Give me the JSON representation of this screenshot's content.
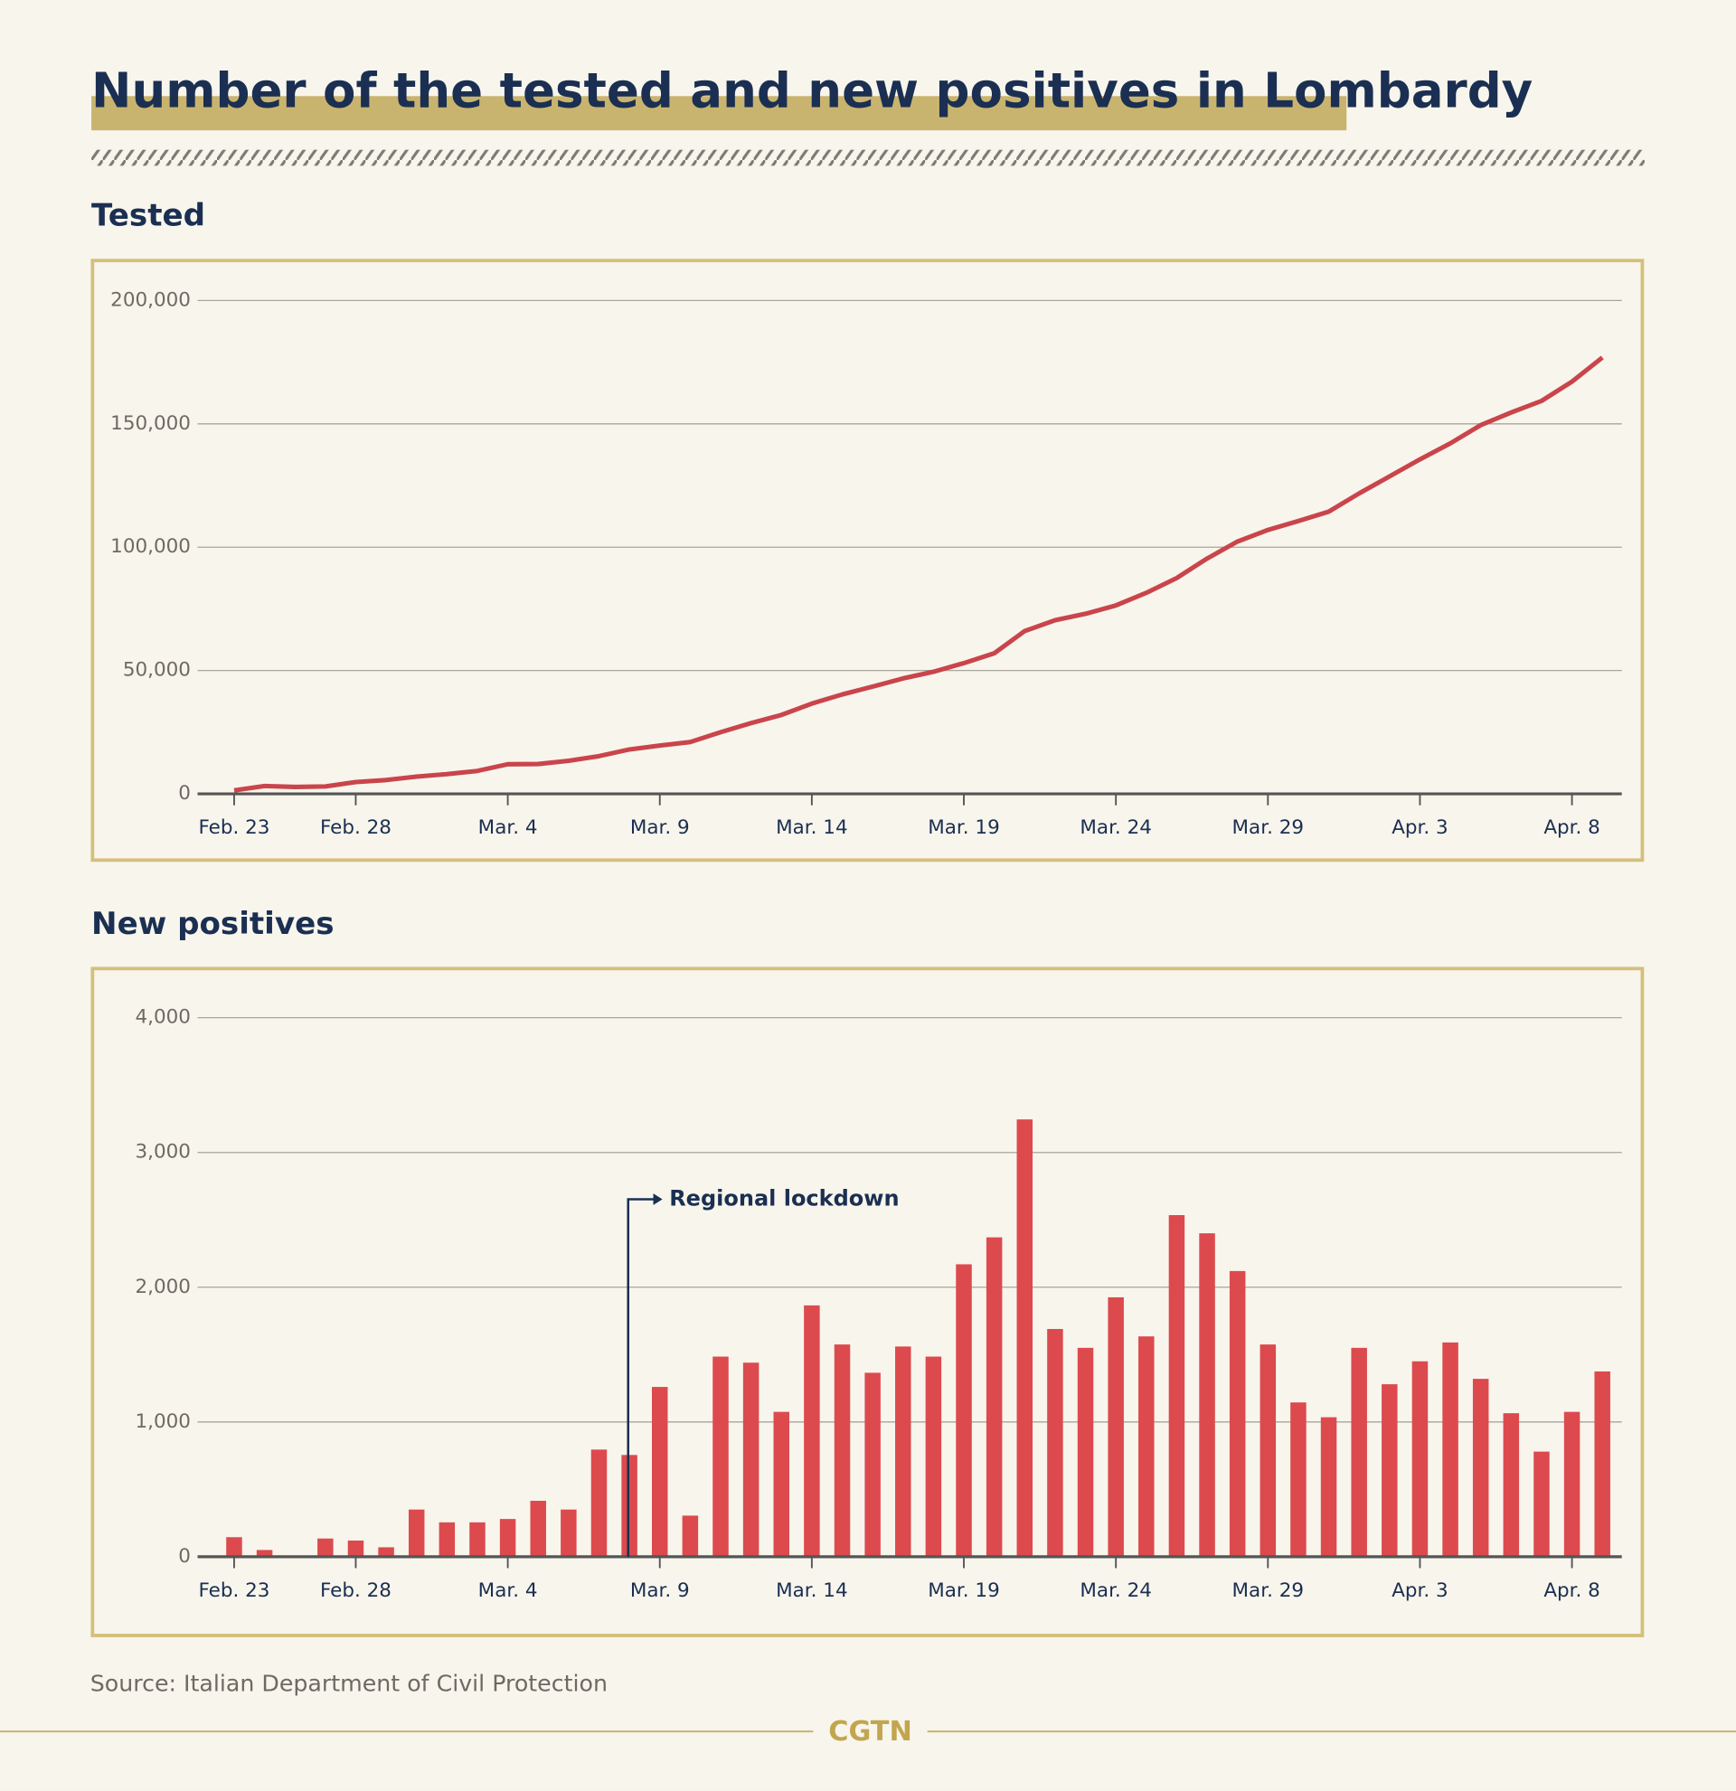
{
  "title": "Number of the tested and new positives in Lombardy",
  "source": "Source: Italian Department of Civil Protection",
  "brand": "CGTN",
  "chart_data": [
    {
      "type": "line",
      "title": "Tested",
      "color": "#c9454b",
      "grid": true,
      "categories": [
        "Feb. 23",
        null,
        null,
        null,
        "Feb. 28",
        null,
        null,
        null,
        null,
        "Mar. 4",
        null,
        null,
        null,
        null,
        "Mar. 9",
        null,
        null,
        null,
        null,
        "Mar. 14",
        null,
        null,
        null,
        null,
        "Mar. 19",
        null,
        null,
        null,
        null,
        "Mar. 24",
        null,
        null,
        null,
        null,
        "Mar. 29",
        null,
        null,
        null,
        null,
        "Apr. 3",
        null,
        null,
        null,
        null,
        "Apr. 8",
        null
      ],
      "values": [
        1400,
        3200,
        2800,
        3000,
        4800,
        5600,
        7000,
        8000,
        9300,
        12000,
        12100,
        13400,
        15300,
        18000,
        19600,
        21000,
        25000,
        28700,
        32000,
        36600,
        40300,
        43500,
        46800,
        49500,
        53000,
        57000,
        66000,
        70400,
        73000,
        76400,
        81500,
        87500,
        95400,
        102300,
        107000,
        110600,
        114400,
        121800,
        128700,
        135600,
        142100,
        149500,
        154600,
        159300,
        167100,
        176900
      ],
      "ylim": [
        0,
        200000
      ],
      "yticks": [
        0,
        {
          "value": 50000,
          "label": "50,000"
        },
        {
          "value": 100000,
          "label": "100,000"
        },
        {
          "value": 150000,
          "label": "150,000"
        },
        {
          "value": 200000,
          "label": "200,000"
        }
      ]
    },
    {
      "type": "bar",
      "title": "New positives",
      "color": "#dc4a4e",
      "grid": true,
      "categories": [
        "Feb. 23",
        null,
        null,
        null,
        "Feb. 28",
        null,
        null,
        null,
        null,
        "Mar. 4",
        null,
        null,
        null,
        null,
        "Mar. 9",
        null,
        null,
        null,
        null,
        "Mar. 14",
        null,
        null,
        null,
        null,
        "Mar. 19",
        null,
        null,
        null,
        null,
        "Mar. 24",
        null,
        null,
        null,
        null,
        "Mar. 29",
        null,
        null,
        null,
        null,
        "Apr. 3",
        null,
        null,
        null,
        null,
        "Apr. 8",
        null
      ],
      "values": [
        145,
        50,
        0,
        135,
        120,
        70,
        350,
        255,
        255,
        280,
        415,
        350,
        795,
        755,
        1260,
        305,
        1485,
        1440,
        1075,
        1865,
        1575,
        1365,
        1560,
        1485,
        2170,
        2370,
        3245,
        1690,
        1550,
        1925,
        1635,
        2535,
        2400,
        2120,
        1575,
        1145,
        1035,
        1550,
        1280,
        1450,
        1590,
        1320,
        1065,
        780,
        1075,
        1375
      ],
      "ylim": [
        0,
        4000
      ],
      "yticks": [
        0,
        {
          "value": 1000,
          "label": "1,000"
        },
        {
          "value": 2000,
          "label": "2,000"
        },
        {
          "value": 3000,
          "label": "3,000"
        },
        {
          "value": 4000,
          "label": "4,000"
        }
      ],
      "annotation": "Regional lockdown"
    }
  ]
}
